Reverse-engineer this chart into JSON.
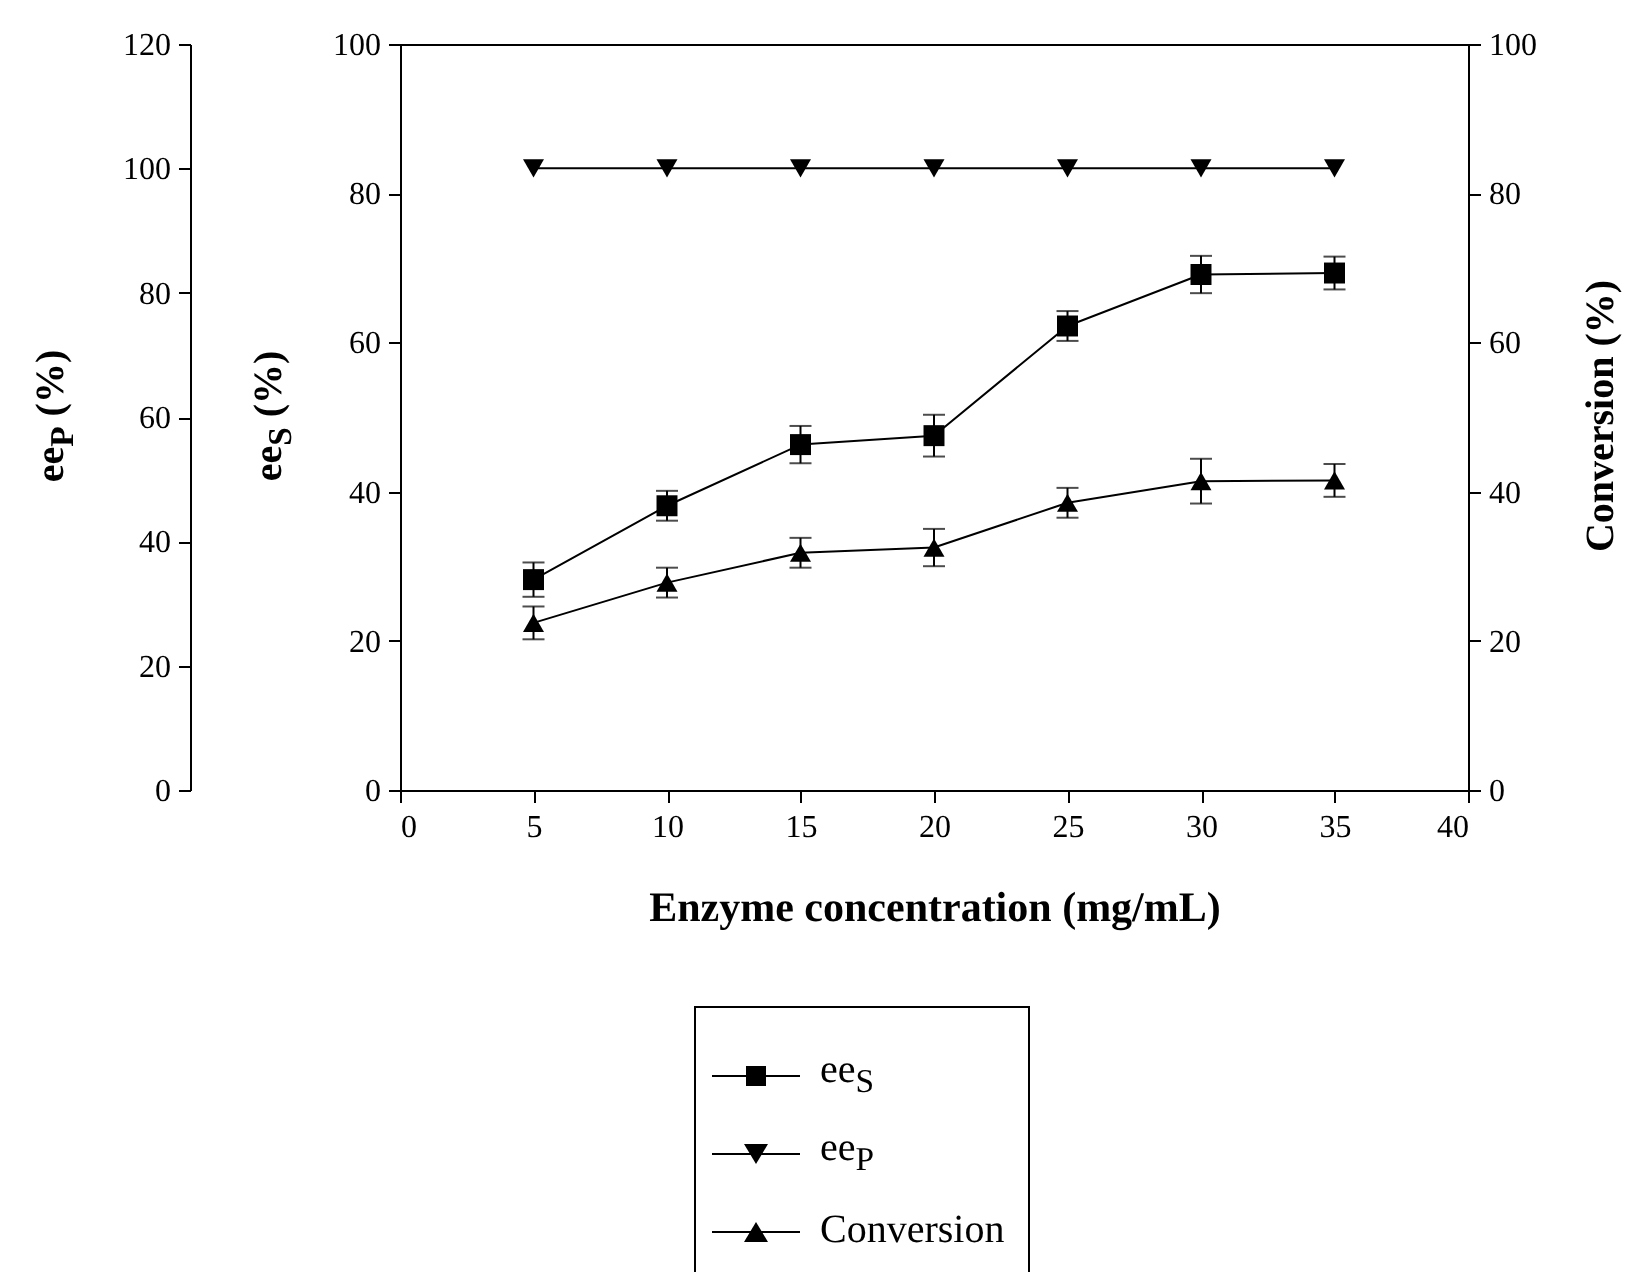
{
  "chart_data": {
    "type": "line",
    "xlabel": "Enzyme concentration (mg/mL)",
    "ylabel": "ee$_{S}$ (%)",
    "y2label": "Conversion (%)",
    "y3label": "ee$_{P}$ (%)",
    "x": [
      5,
      10,
      15,
      20,
      25,
      30,
      35
    ],
    "xlim": [
      0,
      40
    ],
    "xticks": [
      0,
      5,
      10,
      15,
      20,
      25,
      30,
      35,
      40
    ],
    "ylim": [
      0,
      100
    ],
    "yticks": [
      0,
      20,
      40,
      60,
      80,
      100
    ],
    "y2lim": [
      0,
      100
    ],
    "y2ticks": [
      0,
      20,
      40,
      60,
      80,
      100
    ],
    "y3lim": [
      0,
      120
    ],
    "y3ticks": [
      0,
      20,
      40,
      60,
      80,
      100,
      120
    ],
    "grid": false,
    "legend": "bottom",
    "series": [
      {
        "name": "ee$_{S}$",
        "color": "#000000",
        "marker": "square",
        "values": [
          28.2,
          38.1,
          46.3,
          47.5,
          62.2,
          69.1,
          69.3
        ],
        "errors": [
          2.3,
          2,
          2.5,
          2.8,
          2,
          2.5,
          2.2
        ]
      },
      {
        "name": "ee$_{P}$",
        "color": "#000000",
        "marker": "triangle-down",
        "axis": "y3",
        "values": [
          100,
          100,
          100,
          100,
          100,
          100,
          100
        ]
      },
      {
        "name": "Conversion",
        "color": "#000000",
        "marker": "triangle",
        "axis": "y2",
        "values": [
          22.4,
          27.8,
          31.8,
          32.5,
          38.5,
          41.4,
          41.5
        ],
        "errors": [
          2.2,
          2,
          2,
          2.5,
          2,
          3,
          2.2
        ]
      }
    ]
  }
}
